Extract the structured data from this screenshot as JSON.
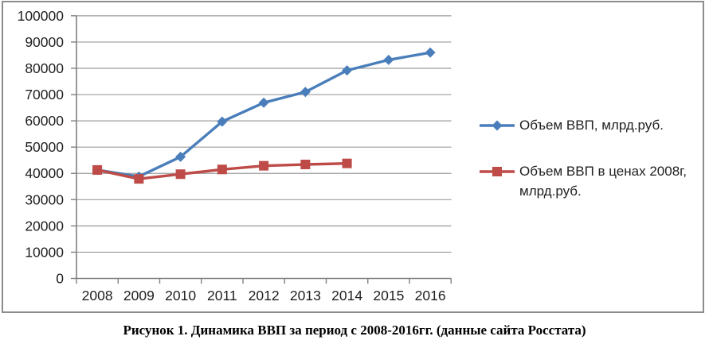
{
  "figure": {
    "caption": "Рисунок 1. Динамика ВВП за период с 2008-2016гг. (данные сайта Росстата)"
  },
  "chart_data": {
    "type": "line",
    "title": "",
    "xlabel": "",
    "ylabel": "",
    "categories": [
      "2008",
      "2009",
      "2010",
      "2011",
      "2012",
      "2013",
      "2014",
      "2015",
      "2016"
    ],
    "series": [
      {
        "name": "Объем ВВП, млрд.руб.",
        "marker": "diamond",
        "color": "#4a7ebb",
        "values": [
          41300,
          38800,
          46300,
          59700,
          66900,
          71000,
          79200,
          83200,
          86000
        ]
      },
      {
        "name": "Объем ВВП в ценах 2008г, млрд.руб.",
        "marker": "square",
        "color": "#be4b48",
        "values": [
          41300,
          37900,
          39700,
          41500,
          42900,
          43400,
          43800
        ]
      }
    ],
    "ylim": [
      0,
      100000
    ],
    "ytick_step": 10000,
    "yticks": [
      0,
      10000,
      20000,
      30000,
      40000,
      50000,
      60000,
      70000,
      80000,
      90000,
      100000
    ],
    "grid": "horizontal",
    "legend_position": "right"
  },
  "colors": {
    "series1": "#4a7ebb",
    "series2": "#be4b48",
    "gridline": "#9b9b9b",
    "axis": "#808080",
    "frame_border": "#8c8c8c",
    "text": "#1f1f1f"
  }
}
